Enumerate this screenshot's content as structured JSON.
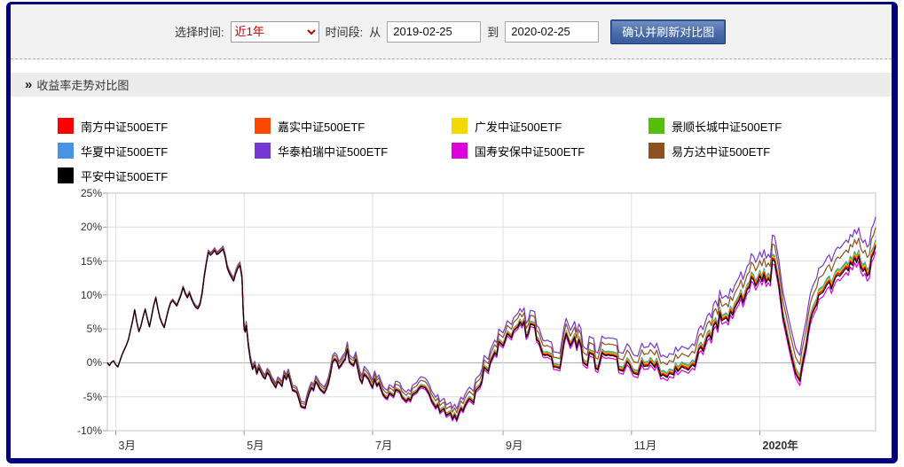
{
  "toolbar": {
    "time_select_label": "选择时间:",
    "time_select_value": "近1年",
    "period_label": "时间段:",
    "from_label": "从",
    "from_value": "2019-02-25",
    "to_label": "到",
    "to_value": "2020-02-25",
    "confirm_button": "确认并刷新对比图"
  },
  "section": {
    "title": "收益率走势对比图",
    "icon": "double-arrow-icon"
  },
  "colors": {
    "frame_border": "#010080",
    "toolbar_bg": "#f1f1f1",
    "header_bg": "#ececec",
    "grid_line": "#e0e0e0",
    "zero_line": "#a8a8a8",
    "plot_border": "#c6c6c6",
    "button_bg": "#4a6ba8",
    "select_text": "#c00000"
  },
  "chart_data": {
    "type": "line",
    "title": "收益率走势对比图",
    "x_range": [
      "2019-02-25",
      "2020-02-25"
    ],
    "total_days": 365,
    "x_tick_labels": [
      "3月",
      "5月",
      "7月",
      "9月",
      "11月",
      "2020年"
    ],
    "x_tick_days": [
      4,
      65,
      126,
      188,
      249,
      310
    ],
    "y_ticks": [
      "25%",
      "20%",
      "15%",
      "10%",
      "5%",
      "0%",
      "-5%",
      "-10%"
    ],
    "ylim": [
      -10,
      25
    ],
    "y_unit": "%",
    "grid": true,
    "legend_position": "top",
    "note": "All nine CSI500 ETF lines track one base trajectory; series value = base + offset_weight * (day/total_days)^spread_exponent",
    "spread_exponent": 1.25,
    "draw_order": [
      5,
      7,
      4,
      3,
      2,
      1,
      0,
      6,
      8
    ],
    "series": [
      {
        "name": "南方中证500ETF",
        "color": "#fe0000",
        "offset_weight": 0,
        "end_value_pct": 17.4
      },
      {
        "name": "嘉实中证500ETF",
        "color": "#ff4800",
        "offset_weight": 0.12,
        "end_value_pct": 17.5
      },
      {
        "name": "广发中证500ETF",
        "color": "#f2da00",
        "offset_weight": 0.3,
        "end_value_pct": 17.7
      },
      {
        "name": "景顺长城中证500ETF",
        "color": "#55be0c",
        "offset_weight": 0.5,
        "end_value_pct": 17.9
      },
      {
        "name": "华夏中证500ETF",
        "color": "#4793e6",
        "offset_weight": 0.75,
        "end_value_pct": 18.1
      },
      {
        "name": "华泰柏瑞中证500ETF",
        "color": "#7638d4",
        "offset_weight": 4.1,
        "end_value_pct": 21.5
      },
      {
        "name": "国寿安保中证500ETF",
        "color": "#df00df",
        "offset_weight": -0.95,
        "end_value_pct": 16.5
      },
      {
        "name": "易方达中证500ETF",
        "color": "#8e5120",
        "offset_weight": 2.55,
        "end_value_pct": 19.9
      },
      {
        "name": "平安中证500ETF",
        "color": "#000000",
        "offset_weight": -0.25,
        "end_value_pct": 17.2
      }
    ],
    "base_points": [
      [
        0,
        0
      ],
      [
        1,
        -0.4
      ],
      [
        2,
        0.1
      ],
      [
        3,
        0.3
      ],
      [
        4,
        -0.3
      ],
      [
        5,
        -0.6
      ],
      [
        7,
        1.2
      ],
      [
        9,
        2.6
      ],
      [
        10,
        3.4
      ],
      [
        11,
        4.8
      ],
      [
        12,
        6.2
      ],
      [
        13,
        7.8
      ],
      [
        14,
        6.0
      ],
      [
        15,
        4.6
      ],
      [
        16,
        5.5
      ],
      [
        17,
        6.8
      ],
      [
        18,
        7.9
      ],
      [
        19,
        6.5
      ],
      [
        20,
        5.3
      ],
      [
        21,
        6.8
      ],
      [
        22,
        8.4
      ],
      [
        23,
        9.6
      ],
      [
        24,
        8.0
      ],
      [
        25,
        6.6
      ],
      [
        26,
        5.8
      ],
      [
        27,
        5.2
      ],
      [
        28,
        6.5
      ],
      [
        29,
        7.8
      ],
      [
        30,
        8.8
      ],
      [
        31,
        9.2
      ],
      [
        32,
        8.8
      ],
      [
        33,
        8.4
      ],
      [
        34,
        9.2
      ],
      [
        35,
        10.0
      ],
      [
        36,
        11.1
      ],
      [
        37,
        10.2
      ],
      [
        38,
        9.6
      ],
      [
        39,
        10.3
      ],
      [
        40,
        9.4
      ],
      [
        41,
        8.7
      ],
      [
        42,
        8.2
      ],
      [
        43,
        8.0
      ],
      [
        44,
        8.6
      ],
      [
        45,
        10.2
      ],
      [
        46,
        12.6
      ],
      [
        47,
        14.6
      ],
      [
        48,
        16.3
      ],
      [
        49,
        15.9
      ],
      [
        50,
        16.2
      ],
      [
        51,
        16.6
      ],
      [
        52,
        16.0
      ],
      [
        53,
        16.2
      ],
      [
        54,
        16.5
      ],
      [
        55,
        16.8
      ],
      [
        56,
        15.6
      ],
      [
        57,
        14.0
      ],
      [
        58,
        13.2
      ],
      [
        59,
        12.6
      ],
      [
        60,
        12.1
      ],
      [
        61,
        13.2
      ],
      [
        62,
        14.0
      ],
      [
        63,
        14.4
      ],
      [
        64,
        12.5
      ],
      [
        64.5,
        8.0
      ],
      [
        65,
        5.0
      ],
      [
        65.5,
        4.6
      ],
      [
        66,
        5.6
      ],
      [
        67,
        2.5
      ],
      [
        68,
        0.4
      ],
      [
        69,
        -0.9
      ],
      [
        70,
        -0.3
      ],
      [
        71,
        -1.6
      ],
      [
        72,
        -0.7
      ],
      [
        73,
        -1.4
      ],
      [
        74,
        -2.0
      ],
      [
        75,
        -2.3
      ],
      [
        76,
        -1.4
      ],
      [
        77,
        -1.8
      ],
      [
        78,
        -2.6
      ],
      [
        79,
        -3.1
      ],
      [
        80,
        -3.6
      ],
      [
        81,
        -2.7
      ],
      [
        82,
        -3.0
      ],
      [
        83,
        -3.4
      ],
      [
        84,
        -1.8
      ],
      [
        85,
        -2.4
      ],
      [
        86,
        -1.6
      ],
      [
        87,
        -2.8
      ],
      [
        88,
        -4.0
      ],
      [
        89,
        -4.1
      ],
      [
        90,
        -4.3
      ],
      [
        91,
        -5.3
      ],
      [
        92,
        -6.4
      ],
      [
        93,
        -6.5
      ],
      [
        94,
        -6.6
      ],
      [
        95,
        -5.3
      ],
      [
        96,
        -4.3
      ],
      [
        97,
        -3.6
      ],
      [
        98,
        -4.0
      ],
      [
        99,
        -2.7
      ],
      [
        100,
        -3.2
      ],
      [
        101,
        -3.8
      ],
      [
        102,
        -4.1
      ],
      [
        103,
        -4.4
      ],
      [
        104,
        -3.8
      ],
      [
        105,
        -3.0
      ],
      [
        106,
        -1.6
      ],
      [
        107,
        0.2
      ],
      [
        108,
        0.6
      ],
      [
        109,
        0.3
      ],
      [
        110,
        -0.7
      ],
      [
        111,
        -0.3
      ],
      [
        112,
        0.2
      ],
      [
        113,
        0.6
      ],
      [
        114,
        2.1
      ],
      [
        115,
        0.2
      ],
      [
        116,
        -0.1
      ],
      [
        117,
        -0.3
      ],
      [
        118,
        0.6
      ],
      [
        119,
        -0.8
      ],
      [
        120,
        -2.3
      ],
      [
        121,
        -2.9
      ],
      [
        122,
        -1.6
      ],
      [
        123,
        -1.9
      ],
      [
        124,
        -2.3
      ],
      [
        125,
        -3.0
      ],
      [
        126,
        -3.6
      ],
      [
        127,
        -2.3
      ],
      [
        128,
        -3.3
      ],
      [
        129,
        -2.9
      ],
      [
        130,
        -3.8
      ],
      [
        131,
        -4.6
      ],
      [
        132,
        -5.0
      ],
      [
        133,
        -5.2
      ],
      [
        134,
        -4.4
      ],
      [
        135,
        -4.6
      ],
      [
        136,
        -4.9
      ],
      [
        137,
        -3.9
      ],
      [
        138,
        -4.0
      ],
      [
        139,
        -4.2
      ],
      [
        140,
        -5.0
      ],
      [
        141,
        -5.3
      ],
      [
        142,
        -5.6
      ],
      [
        143,
        -5.2
      ],
      [
        144,
        -5.5
      ],
      [
        145,
        -4.6
      ],
      [
        146,
        -4.4
      ],
      [
        147,
        -4.2
      ],
      [
        148,
        -3.7
      ],
      [
        149,
        -3.4
      ],
      [
        150,
        -3.5
      ],
      [
        151,
        -3.6
      ],
      [
        152,
        -4.0
      ],
      [
        153,
        -4.6
      ],
      [
        154,
        -5.5
      ],
      [
        155,
        -6.0
      ],
      [
        156,
        -6.5
      ],
      [
        157,
        -6.1
      ],
      [
        158,
        -7.2
      ],
      [
        159,
        -6.9
      ],
      [
        160,
        -6.7
      ],
      [
        161,
        -7.7
      ],
      [
        162,
        -7.5
      ],
      [
        163,
        -7.3
      ],
      [
        164,
        -8.2
      ],
      [
        165,
        -7.6
      ],
      [
        166,
        -8.3
      ],
      [
        167,
        -7.4
      ],
      [
        168,
        -6.6
      ],
      [
        169,
        -7.0
      ],
      [
        170,
        -6.2
      ],
      [
        171,
        -5.6
      ],
      [
        172,
        -5.2
      ],
      [
        173,
        -5.5
      ],
      [
        174,
        -5.8
      ],
      [
        175,
        -4.0
      ],
      [
        176,
        -3.7
      ],
      [
        177,
        -3.4
      ],
      [
        178,
        -2.6
      ],
      [
        179,
        -0.6
      ],
      [
        180,
        -0.9
      ],
      [
        181,
        -1.2
      ],
      [
        182,
        0.2
      ],
      [
        183,
        0.9
      ],
      [
        184,
        1.6
      ],
      [
        185,
        1.2
      ],
      [
        186,
        3.2
      ],
      [
        187,
        2.9
      ],
      [
        188,
        2.6
      ],
      [
        189,
        3.4
      ],
      [
        190,
        4.4
      ],
      [
        191,
        4.1
      ],
      [
        192,
        3.8
      ],
      [
        193,
        4.8
      ],
      [
        194,
        5.1
      ],
      [
        195,
        5.4
      ],
      [
        196,
        6.1
      ],
      [
        197,
        5.6
      ],
      [
        198,
        6.2
      ],
      [
        199,
        3.9
      ],
      [
        200,
        4.4
      ],
      [
        201,
        5.8
      ],
      [
        202,
        5.7
      ],
      [
        203,
        5.6
      ],
      [
        204,
        3.5
      ],
      [
        205,
        3.2
      ],
      [
        206,
        2.2
      ],
      [
        207,
        1.3
      ],
      [
        208,
        1.2
      ],
      [
        209,
        1.3
      ],
      [
        210,
        1.1
      ],
      [
        211,
        1.0
      ],
      [
        212,
        -0.5
      ],
      [
        213,
        -0.5
      ],
      [
        214,
        -0.6
      ],
      [
        215,
        -0.7
      ],
      [
        216,
        1.2
      ],
      [
        217,
        3.2
      ],
      [
        218,
        4.4
      ],
      [
        219,
        3.5
      ],
      [
        220,
        2.6
      ],
      [
        221,
        3.2
      ],
      [
        222,
        3.9
      ],
      [
        223,
        2.3
      ],
      [
        224,
        3.5
      ],
      [
        225,
        2.8
      ],
      [
        226,
        0.2
      ],
      [
        227,
        -0.1
      ],
      [
        228,
        -0.3
      ],
      [
        229,
        1.6
      ],
      [
        230,
        1.4
      ],
      [
        231,
        1.3
      ],
      [
        232,
        -0.7
      ],
      [
        233,
        -0.9
      ],
      [
        234,
        0.3
      ],
      [
        235,
        1.6
      ],
      [
        236,
        1.3
      ],
      [
        237,
        1.2
      ],
      [
        238,
        1.3
      ],
      [
        239,
        1.2
      ],
      [
        240,
        1.2
      ],
      [
        241,
        1.1
      ],
      [
        242,
        1.0
      ],
      [
        243,
        -0.9
      ],
      [
        244,
        -1.0
      ],
      [
        245,
        -1.1
      ],
      [
        246,
        -0.4
      ],
      [
        247,
        0.3
      ],
      [
        248,
        -0.1
      ],
      [
        249,
        -0.8
      ],
      [
        250,
        -1.4
      ],
      [
        251,
        -1.5
      ],
      [
        252,
        -1.6
      ],
      [
        253,
        -0.6
      ],
      [
        254,
        0.3
      ],
      [
        255,
        -0.4
      ],
      [
        256,
        -0.3
      ],
      [
        257,
        -0.3
      ],
      [
        258,
        0.3
      ],
      [
        259,
        -0.1
      ],
      [
        260,
        -0.5
      ],
      [
        261,
        0.2
      ],
      [
        262,
        -0.8
      ],
      [
        263,
        -1.8
      ],
      [
        264,
        -1.6
      ],
      [
        265,
        -1.8
      ],
      [
        266,
        -2.0
      ],
      [
        267,
        -1.4
      ],
      [
        268,
        -1.5
      ],
      [
        269,
        -1.6
      ],
      [
        270,
        -0.5
      ],
      [
        271,
        -1.1
      ],
      [
        272,
        -0.8
      ],
      [
        273,
        -0.4
      ],
      [
        274,
        -0.6
      ],
      [
        275,
        -0.7
      ],
      [
        276,
        -0.9
      ],
      [
        277,
        -0.5
      ],
      [
        278,
        -0.1
      ],
      [
        279,
        -0.4
      ],
      [
        280,
        0.8
      ],
      [
        281,
        2.1
      ],
      [
        282,
        2.5
      ],
      [
        283,
        1.9
      ],
      [
        284,
        2.9
      ],
      [
        285,
        3.9
      ],
      [
        286,
        4.3
      ],
      [
        287,
        3.6
      ],
      [
        288,
        5.6
      ],
      [
        289,
        6.1
      ],
      [
        290,
        5.2
      ],
      [
        291,
        7.6
      ],
      [
        292,
        6.4
      ],
      [
        293,
        6.6
      ],
      [
        294,
        6.8
      ],
      [
        295,
        6.3
      ],
      [
        296,
        7.8
      ],
      [
        297,
        7.2
      ],
      [
        298,
        8.2
      ],
      [
        299,
        8.8
      ],
      [
        300,
        9.3
      ],
      [
        301,
        10.2
      ],
      [
        302,
        9.0
      ],
      [
        303,
        10.0
      ],
      [
        304,
        11.0
      ],
      [
        305,
        11.3
      ],
      [
        306,
        12.8
      ],
      [
        307,
        12.4
      ],
      [
        308,
        11.5
      ],
      [
        309,
        12.1
      ],
      [
        310,
        13.0
      ],
      [
        311,
        12.2
      ],
      [
        312,
        13.3
      ],
      [
        313,
        12.0
      ],
      [
        314,
        12.6
      ],
      [
        315,
        12.1
      ],
      [
        316,
        15.4
      ],
      [
        317,
        15.2
      ],
      [
        318,
        13.5
      ],
      [
        319,
        11.7
      ],
      [
        320,
        9.3
      ],
      [
        321,
        6.9
      ],
      [
        322,
        5.5
      ],
      [
        323,
        4.0
      ],
      [
        324,
        2.6
      ],
      [
        325,
        1.2
      ],
      [
        326,
        -0.1
      ],
      [
        327,
        -1.4
      ],
      [
        328,
        -2.0
      ],
      [
        329,
        -2.5
      ],
      [
        330,
        -0.4
      ],
      [
        331,
        1.1
      ],
      [
        332,
        2.6
      ],
      [
        333,
        4.8
      ],
      [
        334,
        6.5
      ],
      [
        335,
        7.5
      ],
      [
        336,
        8.2
      ],
      [
        337,
        8.8
      ],
      [
        338,
        10.2
      ],
      [
        339,
        10.4
      ],
      [
        340,
        10.6
      ],
      [
        341,
        11.2
      ],
      [
        342,
        11.8
      ],
      [
        343,
        12.1
      ],
      [
        344,
        11.1
      ],
      [
        345,
        12.0
      ],
      [
        346,
        12.8
      ],
      [
        347,
        13.2
      ],
      [
        348,
        13.0
      ],
      [
        349,
        13.4
      ],
      [
        350,
        13.8
      ],
      [
        351,
        14.2
      ],
      [
        352,
        13.8
      ],
      [
        353,
        15.0
      ],
      [
        354,
        14.6
      ],
      [
        355,
        15.7
      ],
      [
        356,
        15.0
      ],
      [
        357,
        15.9
      ],
      [
        358,
        14.3
      ],
      [
        359,
        13.7
      ],
      [
        360,
        14.1
      ],
      [
        361,
        13.0
      ],
      [
        362,
        13.4
      ],
      [
        363,
        15.7
      ],
      [
        364,
        16.3
      ],
      [
        365,
        17.4
      ]
    ]
  }
}
